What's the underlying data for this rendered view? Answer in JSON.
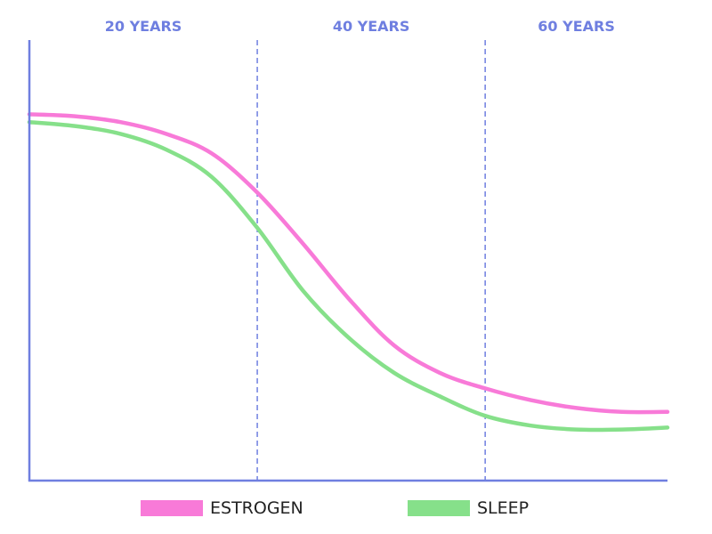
{
  "chart_data": {
    "type": "line",
    "title": "",
    "xlabel": "",
    "ylabel": "",
    "x_ticks": [
      "20 YEARS",
      "40 YEARS",
      "60 YEARS"
    ],
    "x_dividers": [
      1,
      2
    ],
    "xlim": [
      0,
      2.8
    ],
    "ylim": [
      0,
      1
    ],
    "grid": false,
    "legend_position": "bottom",
    "axis_color": "#6f7fe0",
    "series": [
      {
        "name": "ESTROGEN",
        "color": "#f87ad8",
        "x": [
          0,
          0.2,
          0.4,
          0.6,
          0.8,
          1.0,
          1.2,
          1.4,
          1.6,
          1.8,
          2.0,
          2.2,
          2.4,
          2.6,
          2.8
        ],
        "y": [
          0.89,
          0.885,
          0.87,
          0.84,
          0.79,
          0.69,
          0.56,
          0.42,
          0.3,
          0.23,
          0.19,
          0.16,
          0.14,
          0.13,
          0.13
        ]
      },
      {
        "name": "SLEEP",
        "color": "#86e08a",
        "x": [
          0,
          0.2,
          0.4,
          0.6,
          0.8,
          1.0,
          1.2,
          1.4,
          1.6,
          1.8,
          2.0,
          2.2,
          2.4,
          2.6,
          2.8
        ],
        "y": [
          0.87,
          0.86,
          0.84,
          0.8,
          0.73,
          0.6,
          0.44,
          0.32,
          0.23,
          0.17,
          0.12,
          0.095,
          0.085,
          0.085,
          0.09
        ]
      }
    ]
  }
}
